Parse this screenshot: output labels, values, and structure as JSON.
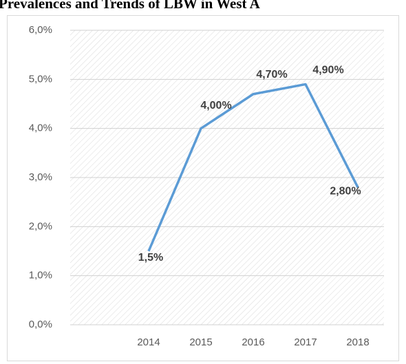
{
  "chart_data": {
    "type": "line",
    "title": "Prevalences and Trends of LBW in West A",
    "categories": [
      null,
      "2014",
      "2015",
      "2016",
      "2017",
      "2018"
    ],
    "series": [
      {
        "color": "#5b9bd5",
        "values": [
          null,
          1.5,
          4.0,
          4.7,
          4.9,
          2.8
        ],
        "value_labels": [
          null,
          "1,5%",
          "4,00%",
          "4,70%",
          "4,90%",
          "2,80%"
        ]
      }
    ],
    "ylim": [
      0,
      6
    ],
    "yticks": [
      {
        "value": 0,
        "label": "0,0%"
      },
      {
        "value": 1,
        "label": "1,0%"
      },
      {
        "value": 2,
        "label": "2,0%"
      },
      {
        "value": 3,
        "label": "3,0%"
      },
      {
        "value": 4,
        "label": "4,0%"
      },
      {
        "value": 5,
        "label": "5,0%"
      },
      {
        "value": 6,
        "label": "6,0%"
      }
    ],
    "grid": true
  }
}
